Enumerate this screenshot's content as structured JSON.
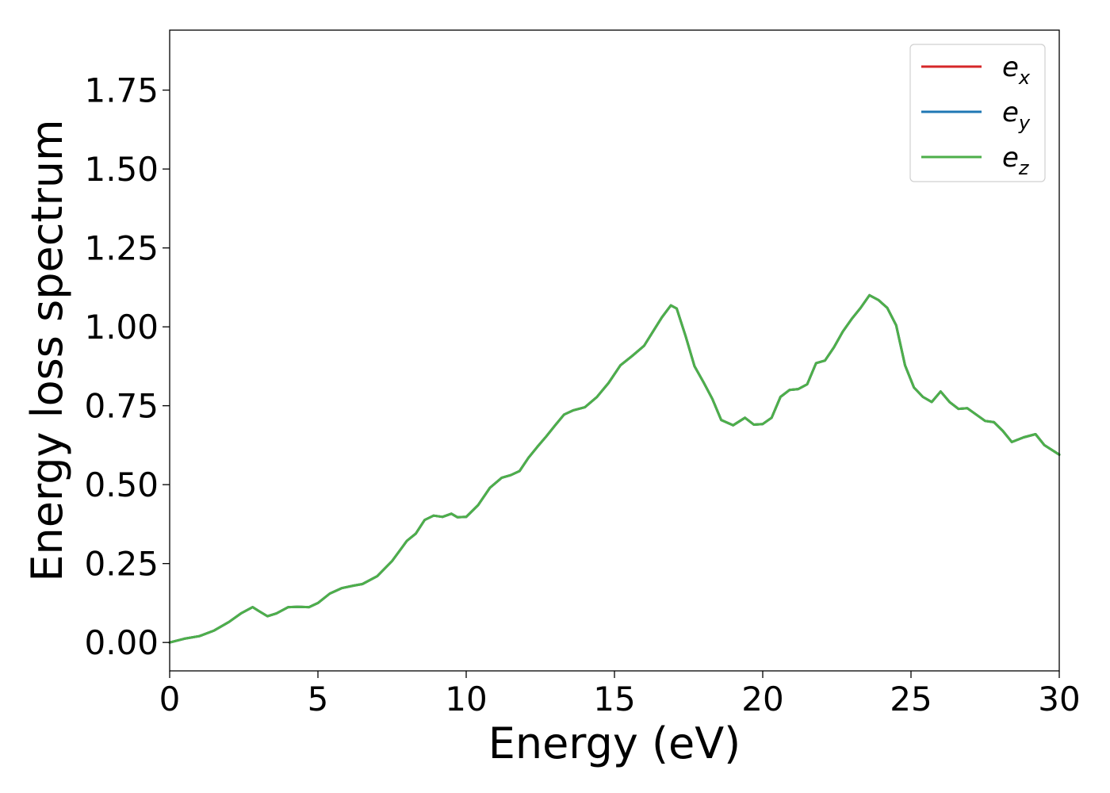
{
  "chart_data": {
    "type": "line",
    "xlabel": "Energy (eV)",
    "ylabel": "Energy loss spectrum",
    "xlim": [
      0,
      30
    ],
    "ylim": [
      -0.09,
      1.94
    ],
    "xticks": [
      0,
      5,
      10,
      15,
      20,
      25,
      30
    ],
    "xtick_labels": [
      "0",
      "5",
      "10",
      "15",
      "20",
      "25",
      "30"
    ],
    "yticks": [
      0.0,
      0.25,
      0.5,
      0.75,
      1.0,
      1.25,
      1.5,
      1.75
    ],
    "ytick_labels": [
      "0.00",
      "0.25",
      "0.50",
      "0.75",
      "1.00",
      "1.25",
      "1.50",
      "1.75"
    ],
    "grid": false,
    "legend_position": "top-right",
    "x": [
      0,
      0.5,
      1.0,
      1.5,
      2.0,
      2.4,
      2.8,
      3.0,
      3.3,
      3.6,
      4.0,
      4.3,
      4.7,
      5.0,
      5.4,
      5.8,
      6.2,
      6.5,
      7.0,
      7.5,
      8.0,
      8.3,
      8.6,
      8.9,
      9.2,
      9.5,
      9.7,
      10.0,
      10.4,
      10.8,
      11.2,
      11.5,
      11.8,
      12.1,
      12.4,
      12.7,
      13.0,
      13.3,
      13.6,
      14.0,
      14.4,
      14.8,
      15.2,
      15.6,
      16.0,
      16.3,
      16.6,
      16.9,
      17.1,
      17.4,
      17.7,
      18.0,
      18.3,
      18.6,
      19.0,
      19.4,
      19.7,
      20.0,
      20.3,
      20.6,
      20.9,
      21.2,
      21.5,
      21.8,
      22.1,
      22.4,
      22.7,
      23.0,
      23.3,
      23.6,
      23.9,
      24.2,
      24.5,
      24.8,
      25.1,
      25.4,
      25.7,
      26.0,
      26.3,
      26.6,
      26.9,
      27.2,
      27.5,
      27.8,
      28.1,
      28.4,
      28.8,
      29.2,
      29.5,
      30.0
    ],
    "series": [
      {
        "name": "e_x",
        "color": "#d62728",
        "values": [
          0.0,
          0.012,
          0.02,
          0.038,
          0.065,
          0.092,
          0.112,
          0.1,
          0.083,
          0.092,
          0.112,
          0.113,
          0.112,
          0.125,
          0.155,
          0.172,
          0.18,
          0.185,
          0.21,
          0.258,
          0.322,
          0.345,
          0.388,
          0.402,
          0.398,
          0.408,
          0.397,
          0.398,
          0.435,
          0.49,
          0.522,
          0.53,
          0.543,
          0.585,
          0.62,
          0.653,
          0.688,
          0.722,
          0.735,
          0.745,
          0.777,
          0.822,
          0.878,
          0.908,
          0.94,
          0.985,
          1.03,
          1.068,
          1.058,
          0.97,
          0.875,
          0.825,
          0.772,
          0.705,
          0.688,
          0.712,
          0.69,
          0.692,
          0.712,
          0.778,
          0.8,
          0.803,
          0.818,
          0.885,
          0.893,
          0.935,
          0.985,
          1.025,
          1.06,
          1.1,
          1.085,
          1.06,
          1.005,
          0.878,
          0.808,
          0.778,
          0.762,
          0.795,
          0.762,
          0.74,
          0.742,
          0.722,
          0.702,
          0.698,
          0.67,
          0.635,
          0.65,
          0.66,
          0.625,
          0.595
        ]
      },
      {
        "name": "e_y",
        "color": "#1f77b4",
        "values": [
          0.0,
          0.012,
          0.02,
          0.038,
          0.065,
          0.092,
          0.112,
          0.1,
          0.083,
          0.092,
          0.112,
          0.113,
          0.112,
          0.125,
          0.155,
          0.172,
          0.18,
          0.185,
          0.21,
          0.258,
          0.322,
          0.345,
          0.388,
          0.402,
          0.398,
          0.408,
          0.397,
          0.398,
          0.435,
          0.49,
          0.522,
          0.53,
          0.543,
          0.585,
          0.62,
          0.653,
          0.688,
          0.722,
          0.735,
          0.745,
          0.777,
          0.822,
          0.878,
          0.908,
          0.94,
          0.985,
          1.03,
          1.068,
          1.058,
          0.97,
          0.875,
          0.825,
          0.772,
          0.705,
          0.688,
          0.712,
          0.69,
          0.692,
          0.712,
          0.778,
          0.8,
          0.803,
          0.818,
          0.885,
          0.893,
          0.935,
          0.985,
          1.025,
          1.06,
          1.1,
          1.085,
          1.06,
          1.005,
          0.878,
          0.808,
          0.778,
          0.762,
          0.795,
          0.762,
          0.74,
          0.742,
          0.722,
          0.702,
          0.698,
          0.67,
          0.635,
          0.65,
          0.66,
          0.625,
          0.595
        ]
      },
      {
        "name": "e_z",
        "color": "#4daf4a",
        "values": [
          0.0,
          0.012,
          0.02,
          0.038,
          0.065,
          0.092,
          0.112,
          0.1,
          0.083,
          0.092,
          0.112,
          0.113,
          0.112,
          0.125,
          0.155,
          0.172,
          0.18,
          0.185,
          0.21,
          0.258,
          0.322,
          0.345,
          0.388,
          0.402,
          0.398,
          0.408,
          0.397,
          0.398,
          0.435,
          0.49,
          0.522,
          0.53,
          0.543,
          0.585,
          0.62,
          0.653,
          0.688,
          0.722,
          0.735,
          0.745,
          0.777,
          0.822,
          0.878,
          0.908,
          0.94,
          0.985,
          1.03,
          1.068,
          1.058,
          0.97,
          0.875,
          0.825,
          0.772,
          0.705,
          0.688,
          0.712,
          0.69,
          0.692,
          0.712,
          0.778,
          0.8,
          0.803,
          0.818,
          0.885,
          0.893,
          0.935,
          0.985,
          1.025,
          1.06,
          1.1,
          1.085,
          1.06,
          1.005,
          0.878,
          0.808,
          0.778,
          0.762,
          0.795,
          0.762,
          0.74,
          0.742,
          0.722,
          0.702,
          0.698,
          0.67,
          0.635,
          0.65,
          0.66,
          0.625,
          0.595
        ]
      }
    ],
    "legend": [
      {
        "base": "e",
        "sub": "x"
      },
      {
        "base": "e",
        "sub": "y"
      },
      {
        "base": "e",
        "sub": "z"
      }
    ]
  }
}
